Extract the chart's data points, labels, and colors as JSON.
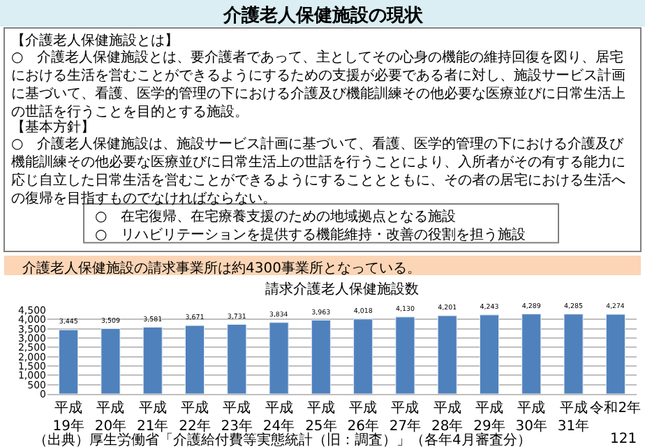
{
  "chart_data": {
    "type": "bar",
    "title": "介護老人保健施設の現状",
    "subtitle": "請求介護老人保健施設数",
    "annotations": [
      "【介護老人保健施設とは】",
      "○　介護老人保健施設とは、要介護者であって、主としてその心身の機能の維持回復を図り、居宅における生活を営むことができるようにするための支援が必要である者に対し、施設サービス計画に基づいて、看護、医学的管理の下における介護及び機能訓練その他必要な医療並びに日常生活上の世話を行うことを目的とする施設。",
      "【基本方針】",
      "○　介護老人保健施設は、施設サービス計画に基づいて、看護、医学的管理の下における介護及び機能訓練その他必要な医療並びに日常生活上の世話を行うことにより、入所者がその有する能力に応じ自立した日常生活を営むことができるようにすることとともに、その者の居宅における生活への復帰を目指すものでなければならない。",
      "○　在宅復帰、在宅療養支援のための地域拠点となる施設",
      "○　リハビリテーションを提供する機能維持・改善の役割を担う施設",
      "介護老人保健施設の請求事業所は約4300事業所となっている。",
      "（出典）厚生労働省「介護給付費等実態統計（旧：調査）」（各年4月審査分）",
      "121"
    ],
    "categories": [
      "平成19年",
      "平成20年",
      "平成21年",
      "平成22年",
      "平成23年",
      "平成24年",
      "平成25年",
      "平成26年",
      "平成27年",
      "平成28年",
      "平成29年",
      "平成30年",
      "平成31年",
      "令和2年"
    ],
    "values": [
      3445,
      3509,
      3581,
      3671,
      3731,
      3834,
      3963,
      4018,
      4130,
      4201,
      4243,
      4289,
      4285,
      4274
    ],
    "color": "#4f81bd",
    "ylim": [
      0,
      4500
    ],
    "yticks": [
      0,
      500,
      {
        "value": 1000,
        "label": "1,000"
      },
      {
        "value": 1500,
        "label": "1,500"
      },
      {
        "value": 2000,
        "label": "2,000"
      },
      {
        "value": 2500,
        "label": "2,500"
      },
      {
        "value": 3000,
        "label": "3,000"
      },
      {
        "value": 3500,
        "label": "3,500"
      },
      {
        "value": 4000,
        "label": "4,000"
      },
      {
        "value": 4500,
        "label": "4,500"
      }
    ],
    "value_labels": [
      "3,445",
      "3,509",
      "3,581",
      "3,671",
      "3,731",
      "3,834",
      "3,963",
      "4,018",
      "4,130",
      "4,201",
      "4,243",
      "4,289",
      "4,285",
      "4,274"
    ],
    "grid": "y"
  }
}
